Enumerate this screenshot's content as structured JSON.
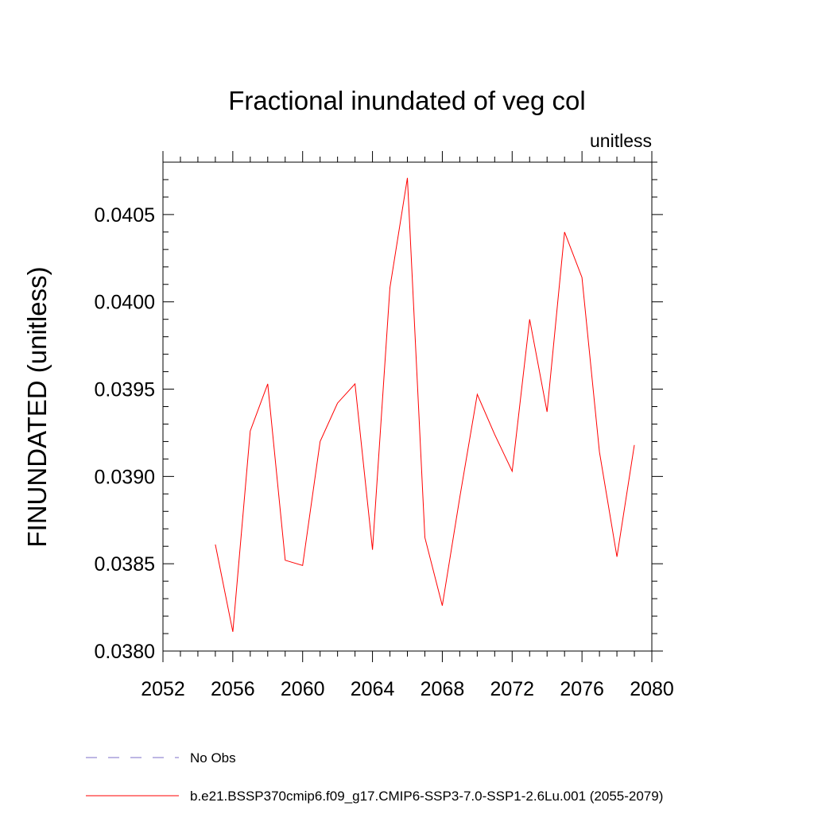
{
  "chart_data": {
    "type": "line",
    "title": "Fractional inundated of veg col",
    "units_label": "unitless",
    "xlabel": "",
    "ylabel": "FINUNDATED  (unitless)",
    "xlim": [
      2052,
      2080
    ],
    "ylim": [
      0.038,
      0.0408
    ],
    "x_ticks": [
      2052,
      2056,
      2060,
      2064,
      2068,
      2072,
      2076,
      2080
    ],
    "x_tick_labels": [
      "2052",
      "2056",
      "2060",
      "2064",
      "2068",
      "2072",
      "2076",
      "2080"
    ],
    "y_ticks": [
      0.038,
      0.0385,
      0.039,
      0.0395,
      0.04,
      0.0405
    ],
    "y_tick_labels": [
      "0.0380",
      "0.0385",
      "0.0390",
      "0.0395",
      "0.0400",
      "0.0405"
    ],
    "grid": false,
    "legend_position": "bottom-left",
    "series": [
      {
        "name": "b.e21.BSSP370cmip6.f09_g17.CMIP6-SSP3-7.0-SSP1-2.6Lu.001 (2055-2079)",
        "color": "#ff0000",
        "style": "solid",
        "x": [
          2055,
          2056,
          2057,
          2058,
          2059,
          2060,
          2061,
          2062,
          2063,
          2064,
          2065,
          2066,
          2067,
          2068,
          2069,
          2070,
          2071,
          2072,
          2073,
          2074,
          2075,
          2076,
          2077,
          2078,
          2079
        ],
        "values": [
          0.03861,
          0.03811,
          0.03926,
          0.03953,
          0.03852,
          0.03849,
          0.0392,
          0.03942,
          0.03953,
          0.03858,
          0.04008,
          0.04071,
          0.03865,
          0.03826,
          0.03888,
          0.03947,
          0.03924,
          0.03903,
          0.0399,
          0.03937,
          0.0404,
          0.04014,
          0.03914,
          0.03854,
          0.03918
        ]
      }
    ],
    "legend": [
      {
        "label": "No Obs",
        "color": "#7b6fc9",
        "style": "dashed"
      },
      {
        "label": "b.e21.BSSP370cmip6.f09_g17.CMIP6-SSP3-7.0-SSP1-2.6Lu.001 (2055-2079)",
        "color": "#ff0000",
        "style": "solid"
      }
    ]
  }
}
